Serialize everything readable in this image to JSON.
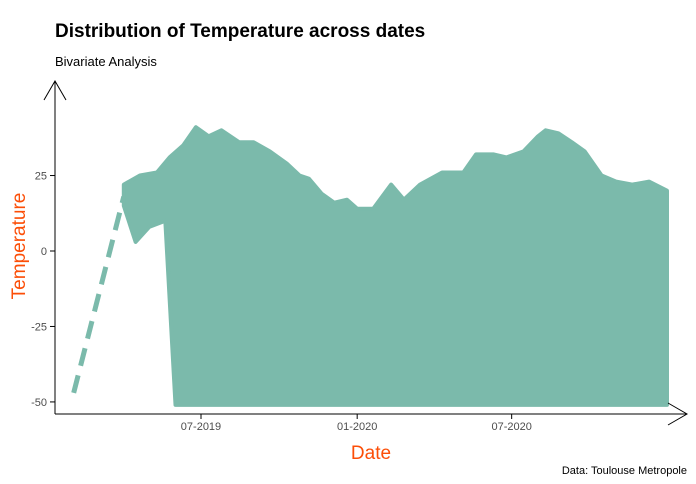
{
  "chart_data": {
    "type": "line",
    "title": "Distribution of Temperature across dates",
    "subtitle": "Bivariate Analysis",
    "xlabel": "Date",
    "ylabel": "Temperature",
    "caption": "Data: Toulouse Metropole",
    "xlim": [
      "2019-01-10",
      "2020-12-31"
    ],
    "ylim": [
      -54,
      54
    ],
    "x_ticks": [
      {
        "date": "2019-07-01",
        "label": "07-2019"
      },
      {
        "date": "2020-01-01",
        "label": "01-2020"
      },
      {
        "date": "2020-07-01",
        "label": "07-2020"
      }
    ],
    "y_ticks": [
      {
        "value": -50,
        "label": "-50"
      },
      {
        "value": -25,
        "label": "-25"
      },
      {
        "value": 0,
        "label": "0"
      },
      {
        "value": 25,
        "label": "25"
      }
    ],
    "grid": false,
    "legend": "none",
    "series": [
      {
        "style": "dashed",
        "color": "#7bbaab",
        "points": [
          {
            "x": "2019-02-01",
            "y": -47
          },
          {
            "x": "2019-04-01",
            "y": 18
          }
        ]
      },
      {
        "style": "solid",
        "color": "#7bbaab",
        "lower": [
          {
            "x": "2019-04-01",
            "y": 15
          },
          {
            "x": "2019-04-15",
            "y": 3
          },
          {
            "x": "2019-05-01",
            "y": 8
          },
          {
            "x": "2019-05-20",
            "y": 10
          },
          {
            "x": "2019-06-01",
            "y": -51
          },
          {
            "x": "2020-12-31",
            "y": -51
          }
        ],
        "upper": [
          {
            "x": "2019-04-01",
            "y": 22
          },
          {
            "x": "2019-04-20",
            "y": 25
          },
          {
            "x": "2019-05-10",
            "y": 26
          },
          {
            "x": "2019-05-25",
            "y": 31
          },
          {
            "x": "2019-06-10",
            "y": 35
          },
          {
            "x": "2019-06-25",
            "y": 41
          },
          {
            "x": "2019-07-10",
            "y": 38
          },
          {
            "x": "2019-07-25",
            "y": 40
          },
          {
            "x": "2019-08-15",
            "y": 36
          },
          {
            "x": "2019-09-01",
            "y": 36
          },
          {
            "x": "2019-09-20",
            "y": 33
          },
          {
            "x": "2019-10-10",
            "y": 29
          },
          {
            "x": "2019-10-25",
            "y": 25
          },
          {
            "x": "2019-11-05",
            "y": 24
          },
          {
            "x": "2019-11-20",
            "y": 19
          },
          {
            "x": "2019-12-05",
            "y": 16
          },
          {
            "x": "2019-12-20",
            "y": 17
          },
          {
            "x": "2020-01-01",
            "y": 14
          },
          {
            "x": "2020-01-20",
            "y": 14
          },
          {
            "x": "2020-02-10",
            "y": 22
          },
          {
            "x": "2020-02-25",
            "y": 17
          },
          {
            "x": "2020-03-15",
            "y": 22
          },
          {
            "x": "2020-04-10",
            "y": 26
          },
          {
            "x": "2020-05-05",
            "y": 26
          },
          {
            "x": "2020-05-20",
            "y": 32
          },
          {
            "x": "2020-06-10",
            "y": 32
          },
          {
            "x": "2020-06-25",
            "y": 31
          },
          {
            "x": "2020-07-15",
            "y": 33
          },
          {
            "x": "2020-08-01",
            "y": 38
          },
          {
            "x": "2020-08-10",
            "y": 40
          },
          {
            "x": "2020-08-25",
            "y": 39
          },
          {
            "x": "2020-09-10",
            "y": 36
          },
          {
            "x": "2020-09-25",
            "y": 33
          },
          {
            "x": "2020-10-15",
            "y": 25
          },
          {
            "x": "2020-11-01",
            "y": 23
          },
          {
            "x": "2020-11-20",
            "y": 22
          },
          {
            "x": "2020-12-10",
            "y": 23
          },
          {
            "x": "2020-12-31",
            "y": 20
          }
        ]
      }
    ]
  }
}
